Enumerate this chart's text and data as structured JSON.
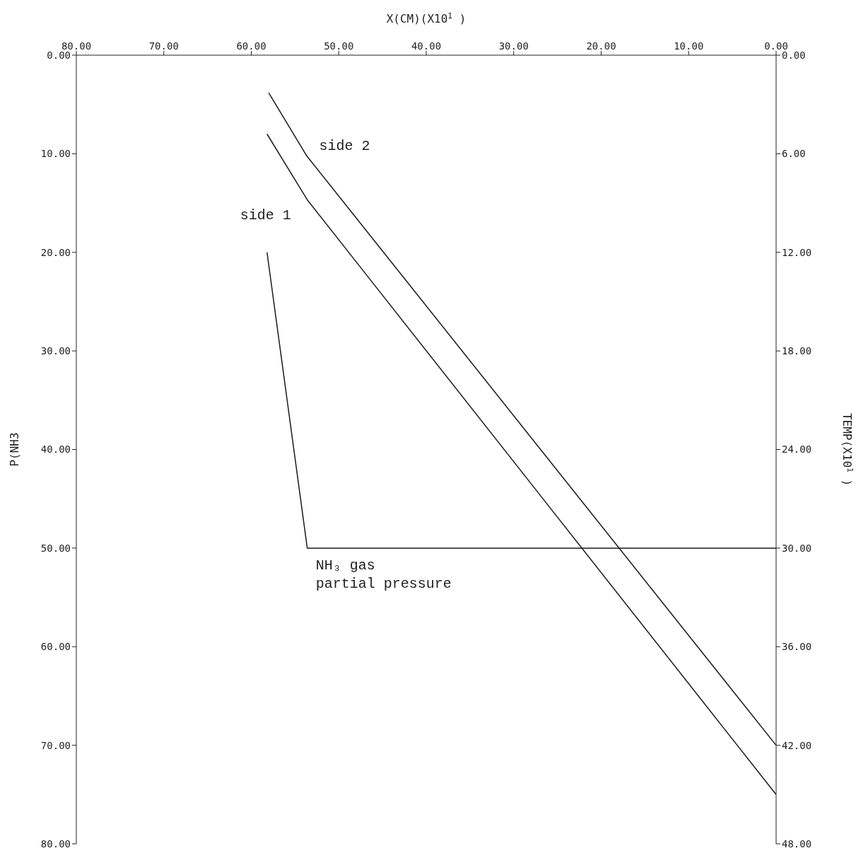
{
  "chart_data": {
    "type": "line",
    "xlabel": "X(CM)(X10$^{1}$ )",
    "ylabel": "P(NH3",
    "y2label": "TEMP(X10$^{1}$ )",
    "xlim": [
      80,
      0
    ],
    "xticks": [
      {
        "value": 0,
        "label": "0.00"
      },
      {
        "value": 10,
        "label": "10.00"
      },
      {
        "value": 20,
        "label": "20.00"
      },
      {
        "value": 30,
        "label": "30.00"
      },
      {
        "value": 40,
        "label": "40.00"
      },
      {
        "value": 50,
        "label": "50.00"
      },
      {
        "value": 60,
        "label": "60.00"
      },
      {
        "value": 70,
        "label": "70.00"
      },
      {
        "value": 80,
        "label": "80.00"
      }
    ],
    "ylim": [
      80,
      0
    ],
    "yticks": [
      {
        "value": 0,
        "label": "0.00"
      },
      {
        "value": 10,
        "label": "10.00"
      },
      {
        "value": 20,
        "label": "20.00"
      },
      {
        "value": 30,
        "label": "30.00"
      },
      {
        "value": 40,
        "label": "40.00"
      },
      {
        "value": 50,
        "label": "50.00"
      },
      {
        "value": 60,
        "label": "60.00"
      },
      {
        "value": 70,
        "label": "70.00"
      },
      {
        "value": 80,
        "label": "80.00"
      }
    ],
    "y2lim": [
      48,
      0
    ],
    "y2ticks": [
      {
        "value": 0,
        "label": "0.00"
      },
      {
        "value": 6,
        "label": "6.00"
      },
      {
        "value": 12,
        "label": "12.00"
      },
      {
        "value": 18,
        "label": "18.00"
      },
      {
        "value": 24,
        "label": "24.00"
      },
      {
        "value": 30,
        "label": "30.00"
      },
      {
        "value": 36,
        "label": "36.00"
      },
      {
        "value": 42,
        "label": "42.00"
      },
      {
        "value": 48,
        "label": "48.00"
      }
    ],
    "series": [
      {
        "name": "side 2",
        "color": "#1a1a1a",
        "axis": "y2",
        "x": [
          58,
          53.7,
          0
        ],
        "values": [
          2.3,
          6.1,
          42
        ]
      },
      {
        "name": "side 1",
        "color": "#1a1a1a",
        "axis": "y2",
        "x": [
          58.2,
          53.6,
          0
        ],
        "values": [
          4.8,
          8.8,
          45
        ]
      },
      {
        "name": "NH₃ gas partial pressure",
        "color": "#1a1a1a",
        "axis": "y",
        "x": [
          58.2,
          53.6,
          0
        ],
        "values": [
          20,
          50,
          50
        ]
      }
    ],
    "marker": "none",
    "line_style": "solid"
  }
}
